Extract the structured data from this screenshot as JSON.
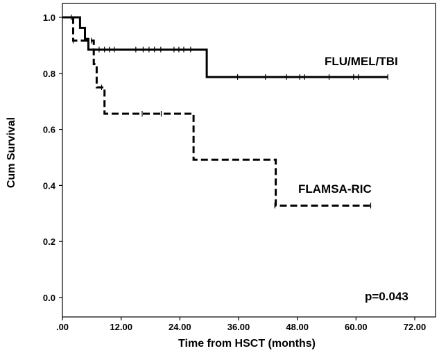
{
  "chart_data": {
    "type": "line",
    "title": "",
    "xlabel": "Time from HSCT (months)",
    "ylabel": "Cum Survival",
    "xlim": [
      0,
      72
    ],
    "ylim": [
      0,
      1
    ],
    "x_ticks": [
      {
        "value": 0,
        "label": ".00"
      },
      {
        "value": 12,
        "label": "12.00"
      },
      {
        "value": 24,
        "label": "24.00"
      },
      {
        "value": 36,
        "label": "36.00"
      },
      {
        "value": 48,
        "label": "48.00"
      },
      {
        "value": 60,
        "label": "60.00"
      },
      {
        "value": 72,
        "label": "72.00"
      }
    ],
    "y_ticks": [
      {
        "value": 0,
        "label": "0.0"
      },
      {
        "value": 0.2,
        "label": "0.2"
      },
      {
        "value": 0.4,
        "label": "0.4"
      },
      {
        "value": 0.6,
        "label": "0.6"
      },
      {
        "value": 0.8,
        "label": "0.8"
      },
      {
        "value": 1.0,
        "label": "1.0"
      }
    ],
    "grid": false,
    "legend": "none",
    "series": [
      {
        "name": "FLU/MEL/TBI",
        "line_style": "solid",
        "steps": [
          [
            0,
            1.0
          ],
          [
            3.6,
            0.962
          ],
          [
            4.6,
            0.923
          ],
          [
            5.3,
            0.885
          ],
          [
            29.5,
            0.787
          ],
          [
            66.5,
            0.787
          ]
        ],
        "censored": [
          [
            1.8,
            1.0
          ],
          [
            7.5,
            0.885
          ],
          [
            8.6,
            0.885
          ],
          [
            9.6,
            0.885
          ],
          [
            10.6,
            0.885
          ],
          [
            15.0,
            0.885
          ],
          [
            16.5,
            0.885
          ],
          [
            17.7,
            0.885
          ],
          [
            18.8,
            0.885
          ],
          [
            20.1,
            0.885
          ],
          [
            22.8,
            0.885
          ],
          [
            23.8,
            0.885
          ],
          [
            24.8,
            0.885
          ],
          [
            26.2,
            0.885
          ],
          [
            35.8,
            0.787
          ],
          [
            41.5,
            0.787
          ],
          [
            45.8,
            0.787
          ],
          [
            48.5,
            0.787
          ],
          [
            49.5,
            0.787
          ],
          [
            54.5,
            0.787
          ],
          [
            59.5,
            0.787
          ],
          [
            60.5,
            0.787
          ],
          [
            66.5,
            0.787
          ]
        ]
      },
      {
        "name": "FLAMSA-RIC",
        "line_style": "dashed",
        "steps": [
          [
            0,
            1.0
          ],
          [
            2.2,
            0.917
          ],
          [
            6.4,
            0.833
          ],
          [
            7.0,
            0.75
          ],
          [
            8.6,
            0.656
          ],
          [
            26.8,
            0.492
          ],
          [
            43.6,
            0.328
          ],
          [
            63.0,
            0.328
          ]
        ],
        "censored": [
          [
            2.2,
            0.917
          ],
          [
            5.9,
            0.917
          ],
          [
            8.0,
            0.75
          ],
          [
            16.3,
            0.656
          ],
          [
            20.2,
            0.656
          ],
          [
            43.4,
            0.328
          ],
          [
            63.0,
            0.328
          ]
        ]
      }
    ],
    "annotations": [
      {
        "text": "FLU/MEL/TBI",
        "series": "FLU/MEL/TBI"
      },
      {
        "text": "FLAMSA-RIC",
        "series": "FLAMSA-RIC"
      },
      {
        "text": "p=0.043"
      }
    ]
  }
}
